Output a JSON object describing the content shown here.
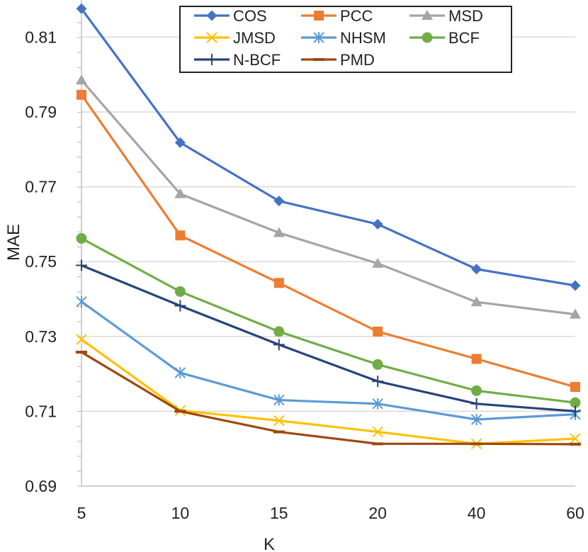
{
  "chart_data": {
    "type": "line",
    "title": "",
    "xlabel": "K",
    "ylabel": "MAE",
    "categories": [
      "5",
      "10",
      "15",
      "20",
      "40",
      "60"
    ],
    "ylim": [
      0.69,
      0.82
    ],
    "yticks": [
      0.69,
      0.71,
      0.73,
      0.75,
      0.77,
      0.79,
      0.81
    ],
    "ytick_labels": [
      "0.69",
      "0.71",
      "0.73",
      "0.75",
      "0.77",
      "0.79",
      "0.81"
    ],
    "grid": true,
    "legend_position": "top-right",
    "series": [
      {
        "name": "COS",
        "color": "#4472C4",
        "marker": "diamond",
        "values": [
          0.8176,
          0.7818,
          0.7662,
          0.76,
          0.748,
          0.7436
        ]
      },
      {
        "name": "PCC",
        "color": "#ED7D31",
        "marker": "square",
        "values": [
          0.7946,
          0.757,
          0.7443,
          0.7313,
          0.724,
          0.7165
        ]
      },
      {
        "name": "MSD",
        "color": "#A5A5A5",
        "marker": "triangle",
        "values": [
          0.7985,
          0.7681,
          0.7577,
          0.7495,
          0.7392,
          0.7359
        ]
      },
      {
        "name": "JMSD",
        "color": "#FFC000",
        "marker": "x",
        "values": [
          0.7292,
          0.7102,
          0.7075,
          0.7045,
          0.7013,
          0.7027
        ]
      },
      {
        "name": "NHSM",
        "color": "#5B9BD5",
        "marker": "asterisk",
        "values": [
          0.7393,
          0.7203,
          0.713,
          0.712,
          0.7078,
          0.7092
        ]
      },
      {
        "name": "BCF",
        "color": "#70AD47",
        "marker": "circle",
        "values": [
          0.7562,
          0.742,
          0.7313,
          0.7225,
          0.7155,
          0.7123
        ]
      },
      {
        "name": "N-BCF",
        "color": "#264478",
        "marker": "plus",
        "values": [
          0.749,
          0.7382,
          0.7278,
          0.718,
          0.712,
          0.71
        ]
      },
      {
        "name": "PMD",
        "color": "#9E480E",
        "marker": "dash",
        "values": [
          0.7258,
          0.71,
          0.7045,
          0.7013,
          0.7013,
          0.7012
        ]
      }
    ]
  }
}
